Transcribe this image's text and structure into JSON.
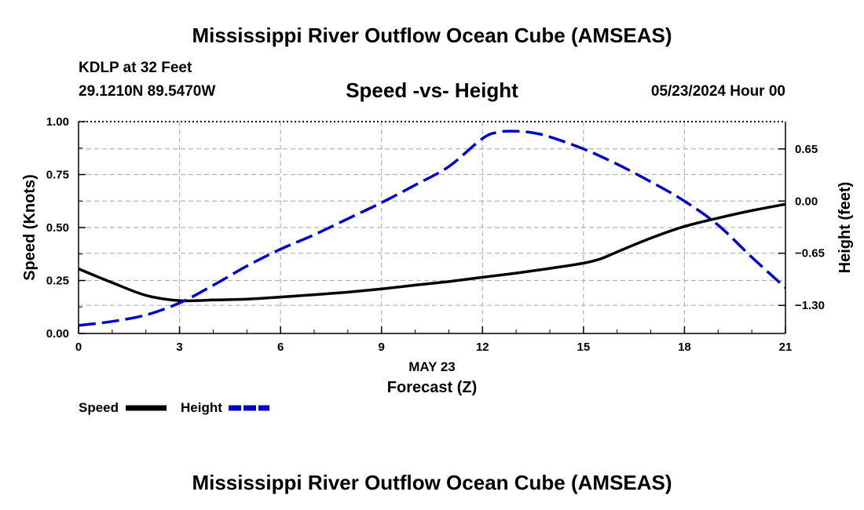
{
  "page": {
    "title_top": "Mississippi River Outflow Ocean Cube (AMSEAS)",
    "title_bottom": "Mississippi River Outflow Ocean Cube (AMSEAS)",
    "station": "KDLP at 32 Feet",
    "coords": "29.1210N  89.5470W",
    "datetime": "05/23/2024 Hour 00"
  },
  "chart_data": {
    "type": "line",
    "title": "Speed -vs- Height",
    "xlabel": "Forecast (Z)",
    "xlabel_date": "MAY 23",
    "ylabel": "Speed (Knots)",
    "ylabel_right": "Height (feet)",
    "xlim": [
      0,
      21
    ],
    "ylim": [
      0,
      1.0
    ],
    "ylim_right": [
      -1.65,
      0.99
    ],
    "x_ticks": [
      0,
      3,
      6,
      9,
      12,
      15,
      18,
      21
    ],
    "x_tick_labels": [
      "0",
      "3",
      "6",
      "9",
      "12",
      "15",
      "18",
      "21"
    ],
    "y_ticks": [
      0,
      0.25,
      0.5,
      0.75,
      1.0
    ],
    "y_tick_labels": [
      "0.00",
      "0.25",
      "0.50",
      "0.75",
      "1.00"
    ],
    "y_right_ticks": [
      0.65,
      0,
      -0.65,
      -1.3
    ],
    "y_right_tick_labels": [
      "0.65",
      "0.00",
      "−0.65",
      "−1.30"
    ],
    "grid": true,
    "series": [
      {
        "name": "Speed",
        "axis": "left",
        "color": "#000000",
        "style": "solid",
        "x": [
          0,
          1,
          2,
          3,
          4,
          5,
          6,
          7,
          8,
          9,
          10,
          11,
          12,
          13,
          14,
          15,
          15.5,
          16,
          17,
          18,
          19,
          20,
          21
        ],
        "values": [
          0.305,
          0.24,
          0.18,
          0.155,
          0.158,
          0.162,
          0.172,
          0.183,
          0.195,
          0.21,
          0.228,
          0.245,
          0.265,
          0.285,
          0.307,
          0.332,
          0.352,
          0.385,
          0.45,
          0.505,
          0.545,
          0.58,
          0.61
        ]
      },
      {
        "name": "Height",
        "axis": "right",
        "color": "#0000cc",
        "style": "dashed",
        "x": [
          0,
          1,
          2,
          3,
          4,
          5,
          6,
          7,
          8,
          9,
          10,
          11,
          12,
          12.5,
          13,
          13.5,
          14,
          15,
          16,
          17,
          18,
          19,
          20,
          21
        ],
        "values": [
          -1.55,
          -1.5,
          -1.42,
          -1.27,
          -1.05,
          -0.81,
          -0.6,
          -0.42,
          -0.22,
          -0.02,
          0.2,
          0.43,
          0.78,
          0.86,
          0.87,
          0.85,
          0.8,
          0.65,
          0.46,
          0.24,
          0.0,
          -0.3,
          -0.7,
          -1.08
        ]
      }
    ],
    "legend": [
      {
        "label": "Speed",
        "color": "#000000",
        "style": "solid"
      },
      {
        "label": "Height",
        "color": "#0000cc",
        "style": "dashed"
      }
    ]
  }
}
